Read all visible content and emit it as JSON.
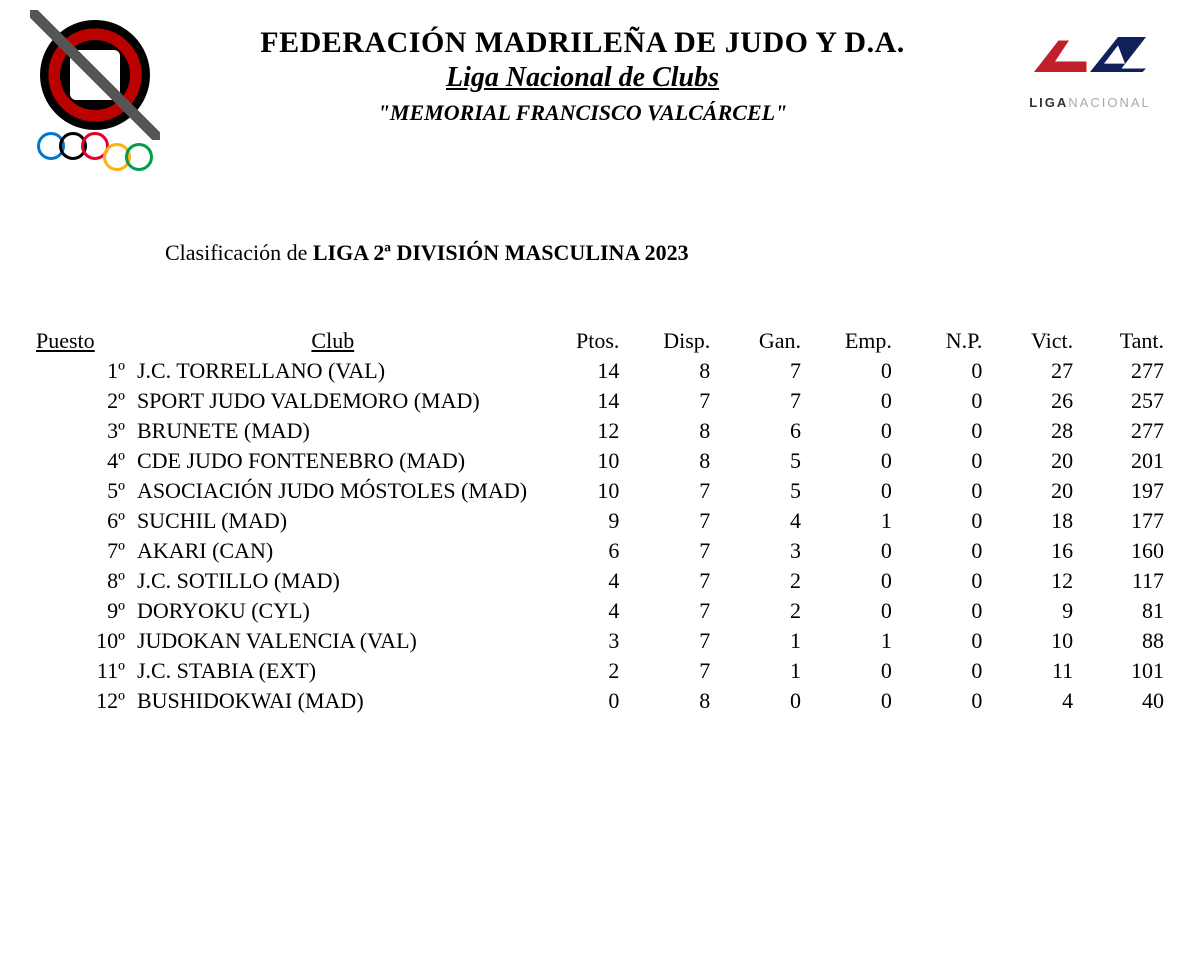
{
  "header": {
    "org": "FEDERACIÓN MADRILEÑA DE JUDO Y D.A.",
    "sub": "Liga Nacional de Clubs",
    "memorial": "\"MEMORIAL FRANCISCO VALCÁRCEL\"",
    "right_logo_text_a": "LIGA",
    "right_logo_text_b": "NACIONAL"
  },
  "classification": {
    "lead": "Clasificación de ",
    "bold": "LIGA 2ª DIVISIÓN MASCULINA 2023"
  },
  "columns": {
    "puesto": "Puesto",
    "club": "Club",
    "ptos": "Ptos.",
    "disp": "Disp.",
    "gan": "Gan.",
    "emp": "Emp.",
    "np": "N.P.",
    "vict": "Vict.",
    "tant": "Tant."
  },
  "rows": [
    {
      "rank": "1º",
      "club": "J.C. TORRELLANO (VAL)",
      "small": false,
      "ptos": 14,
      "disp": 8,
      "gan": 7,
      "emp": 0,
      "np": 0,
      "vict": 27,
      "tant": 277
    },
    {
      "rank": "2º",
      "club": "SPORT JUDO VALDEMORO (MAD)",
      "small": true,
      "ptos": 14,
      "disp": 7,
      "gan": 7,
      "emp": 0,
      "np": 0,
      "vict": 26,
      "tant": 257
    },
    {
      "rank": "3º",
      "club": "BRUNETE (MAD)",
      "small": false,
      "ptos": 12,
      "disp": 8,
      "gan": 6,
      "emp": 0,
      "np": 0,
      "vict": 28,
      "tant": 277
    },
    {
      "rank": "4º",
      "club": "CDE JUDO FONTENEBRO (MAD)",
      "small": true,
      "ptos": 10,
      "disp": 8,
      "gan": 5,
      "emp": 0,
      "np": 0,
      "vict": 20,
      "tant": 201
    },
    {
      "rank": "5º",
      "club": "ASOCIACIÓN JUDO MÓSTOLES (MAD)",
      "small": true,
      "ptos": 10,
      "disp": 7,
      "gan": 5,
      "emp": 0,
      "np": 0,
      "vict": 20,
      "tant": 197
    },
    {
      "rank": "6º",
      "club": "SUCHIL (MAD)",
      "small": false,
      "ptos": 9,
      "disp": 7,
      "gan": 4,
      "emp": 1,
      "np": 0,
      "vict": 18,
      "tant": 177
    },
    {
      "rank": "7º",
      "club": "AKARI (CAN)",
      "small": false,
      "ptos": 6,
      "disp": 7,
      "gan": 3,
      "emp": 0,
      "np": 0,
      "vict": 16,
      "tant": 160
    },
    {
      "rank": "8º",
      "club": "J.C. SOTILLO (MAD)",
      "small": false,
      "ptos": 4,
      "disp": 7,
      "gan": 2,
      "emp": 0,
      "np": 0,
      "vict": 12,
      "tant": 117
    },
    {
      "rank": "9º",
      "club": "DORYOKU (CYL)",
      "small": false,
      "ptos": 4,
      "disp": 7,
      "gan": 2,
      "emp": 0,
      "np": 0,
      "vict": 9,
      "tant": 81
    },
    {
      "rank": "10º",
      "club": "JUDOKAN VALENCIA (VAL)",
      "small": false,
      "ptos": 3,
      "disp": 7,
      "gan": 1,
      "emp": 1,
      "np": 0,
      "vict": 10,
      "tant": 88
    },
    {
      "rank": "11º",
      "club": "J.C. STABIA (EXT)",
      "small": false,
      "ptos": 2,
      "disp": 7,
      "gan": 1,
      "emp": 0,
      "np": 0,
      "vict": 11,
      "tant": 101
    },
    {
      "rank": "12º",
      "club": "BUSHIDOKWAI (MAD)",
      "small": false,
      "ptos": 0,
      "disp": 8,
      "gan": 0,
      "emp": 0,
      "np": 0,
      "vict": 4,
      "tant": 40
    }
  ],
  "style": {
    "background": "#ffffff",
    "text_color": "#000000",
    "logo_red": "#c1202a",
    "logo_navy": "#10215a",
    "ring_colors": [
      "#0078d0",
      "#000000",
      "#e4002b",
      "#ffb114",
      "#009e49"
    ],
    "font_family": "Garamond, 'Times New Roman', serif",
    "title_fontsize": 30,
    "sub_fontsize": 28,
    "memorial_fontsize": 22,
    "class_fontsize": 22,
    "header_underline": true,
    "col_header_fontsize": 17,
    "row_fontsize": 22,
    "small_row_fontsize": 18
  }
}
